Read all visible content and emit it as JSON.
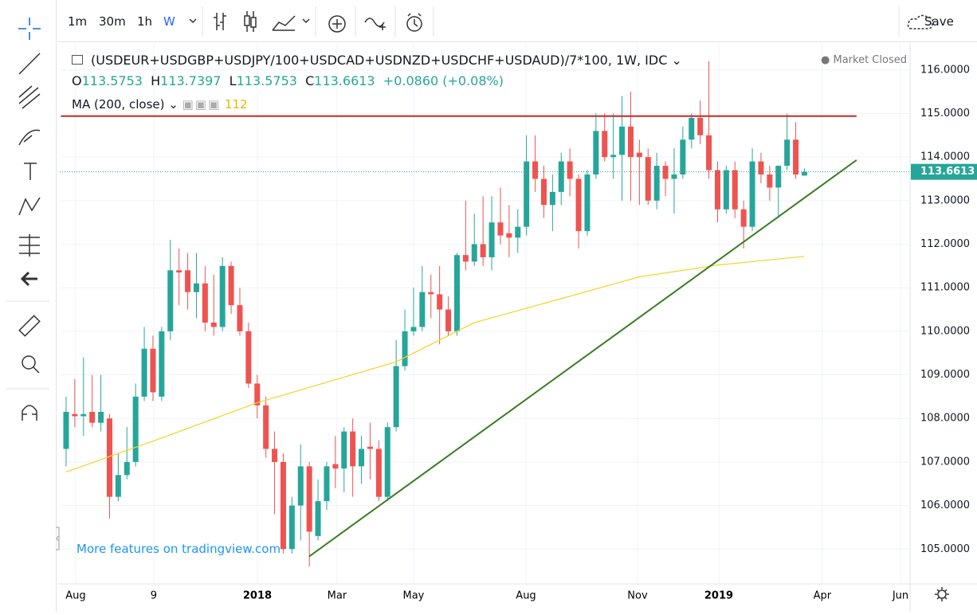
{
  "toolbar": {
    "intervals": [
      "1m",
      "30m",
      "1h",
      "W"
    ],
    "save": "Save"
  },
  "legend": {
    "symbol": "(USDEUR+USDGBP+USDJPY/100+USDCAD+USDNZD+USDCHF+USDAUD)/7*100, 1W, IDC",
    "status": "Market Closed",
    "open_label": "O",
    "high_label": "H",
    "low_label": "L",
    "close_label": "C",
    "change": "+0.0860",
    "change_pct": "(+0.08%)",
    "study": "MA (200, close)",
    "study_value": "112"
  },
  "watermark": "More features on tradingview.com",
  "chart_data": {
    "type": "candlestick",
    "up_color": "#26a69a",
    "down_color": "#ef5350",
    "x": [
      0,
      1,
      2,
      3,
      4,
      5,
      6,
      7,
      8,
      9,
      10,
      11,
      12,
      13,
      14,
      15,
      16,
      17,
      18,
      19,
      20,
      21,
      22,
      23,
      24,
      25,
      26,
      27,
      28,
      29,
      30,
      31,
      32,
      33,
      34,
      35,
      36,
      37,
      38,
      39,
      40,
      41,
      42,
      43,
      44,
      45,
      46,
      47,
      48,
      49,
      50,
      51,
      52,
      53,
      54,
      55,
      56,
      57,
      58,
      59,
      60,
      61,
      62,
      63,
      64,
      65,
      66,
      67,
      68,
      69,
      70,
      71,
      72,
      73,
      74,
      75,
      76,
      77,
      78,
      79,
      80,
      81,
      82,
      83,
      84,
      85
    ],
    "open": [
      107.3,
      108.1,
      108.05,
      108.15,
      107.9,
      108.0,
      106.2,
      106.7,
      107.0,
      108.5,
      109.6,
      108.5,
      110.0,
      111.4,
      111.4,
      110.9,
      111.1,
      110.2,
      110.1,
      111.5,
      110.6,
      110.0,
      108.8,
      108.3,
      107.3,
      107.0,
      105.0,
      106.0,
      106.9,
      105.3,
      106.1,
      106.95,
      106.85,
      107.7,
      106.9,
      107.35,
      107.3,
      106.2,
      107.8,
      109.2,
      110.0,
      110.1,
      110.9,
      110.85,
      110.5,
      110.0,
      111.75,
      111.6,
      112.0,
      111.7,
      112.5,
      112.25,
      112.15,
      112.4,
      113.9,
      113.5,
      112.9,
      113.2,
      113.9,
      113.5,
      112.3,
      113.6,
      114.6,
      114.0,
      114.05,
      114.7,
      114.1,
      114.0,
      113.0,
      113.8,
      113.5,
      113.6,
      114.4,
      114.9,
      114.5,
      113.7,
      112.8,
      113.7,
      112.8,
      112.4,
      113.9,
      113.6,
      113.3,
      113.8,
      114.4,
      113.5753
    ],
    "high": [
      108.5,
      108.9,
      109.4,
      109.0,
      109.0,
      108.1,
      107.2,
      107.8,
      108.8,
      110.1,
      109.9,
      110.1,
      112.1,
      111.9,
      111.8,
      111.8,
      111.5,
      111.3,
      111.7,
      111.6,
      111.0,
      110.2,
      109.0,
      108.5,
      107.7,
      107.2,
      106.2,
      107.4,
      107.0,
      106.6,
      107.0,
      107.6,
      107.8,
      108.0,
      107.6,
      107.9,
      107.5,
      107.9,
      109.8,
      110.5,
      111.0,
      111.5,
      111.3,
      111.5,
      110.8,
      111.8,
      113.0,
      112.7,
      113.1,
      113.1,
      113.3,
      112.9,
      112.8,
      114.5,
      114.5,
      113.8,
      113.6,
      114.1,
      114.2,
      113.6,
      113.7,
      115.0,
      115.0,
      115.0,
      115.4,
      115.5,
      114.4,
      114.2,
      114.1,
      113.9,
      114.2,
      114.7,
      115.0,
      115.3,
      116.2,
      113.9,
      113.8,
      113.9,
      113.0,
      114.2,
      114.1,
      113.8,
      113.8,
      115.0,
      114.8,
      113.7397
    ],
    "low": [
      106.9,
      107.8,
      107.6,
      107.8,
      107.7,
      105.7,
      106.1,
      106.6,
      106.9,
      108.4,
      108.4,
      108.4,
      109.8,
      110.6,
      110.5,
      110.3,
      110.0,
      109.9,
      110.0,
      110.4,
      109.9,
      108.7,
      108.0,
      107.1,
      105.8,
      104.9,
      104.9,
      105.2,
      104.6,
      105.2,
      105.9,
      106.4,
      106.3,
      106.2,
      106.5,
      106.6,
      106.1,
      106.1,
      107.7,
      109.1,
      109.9,
      110.0,
      110.3,
      109.7,
      109.9,
      109.9,
      111.4,
      111.5,
      111.5,
      111.4,
      112.0,
      111.7,
      111.8,
      112.2,
      113.2,
      112.6,
      112.3,
      112.9,
      113.1,
      111.9,
      112.2,
      113.5,
      113.9,
      113.5,
      113.0,
      113.0,
      112.9,
      112.9,
      112.8,
      113.1,
      112.7,
      113.5,
      114.2,
      114.3,
      113.5,
      112.5,
      112.7,
      112.6,
      111.9,
      112.3,
      113.4,
      113.0,
      112.6,
      113.7,
      113.5,
      113.5753
    ],
    "close": [
      108.15,
      108.05,
      108.1,
      107.9,
      108.15,
      106.2,
      106.7,
      107.0,
      108.5,
      109.6,
      108.6,
      110.0,
      111.4,
      111.35,
      110.9,
      111.1,
      110.2,
      110.1,
      111.5,
      110.6,
      110.0,
      108.8,
      108.3,
      107.3,
      107.0,
      105.0,
      106.0,
      106.9,
      105.4,
      106.1,
      106.9,
      106.85,
      107.7,
      106.9,
      107.3,
      107.3,
      106.2,
      107.8,
      109.2,
      110.0,
      110.1,
      110.9,
      110.85,
      110.5,
      110.0,
      111.75,
      111.6,
      112.0,
      111.7,
      112.5,
      112.2,
      112.15,
      112.4,
      113.9,
      113.5,
      112.9,
      113.2,
      113.9,
      113.5,
      112.3,
      113.6,
      114.6,
      114.0,
      114.05,
      114.7,
      114.0,
      114.0,
      113.0,
      113.8,
      113.5,
      113.6,
      114.4,
      114.9,
      114.5,
      113.7,
      112.8,
      113.7,
      112.8,
      112.4,
      113.9,
      113.6,
      113.3,
      113.8,
      114.4,
      113.6,
      113.6613
    ],
    "ma": {
      "color": "#f5d326",
      "x": [
        0,
        11,
        22,
        38,
        47,
        57,
        66,
        75,
        85
      ],
      "values": [
        106.77,
        107.55,
        108.36,
        109.3,
        110.2,
        110.75,
        111.25,
        111.52,
        111.72
      ]
    },
    "segments": [
      {
        "color": "#c62828",
        "x": [
          -0.6,
          91.0
        ],
        "values": [
          114.94,
          114.94
        ]
      },
      {
        "color": "#3a7d22",
        "x": [
          27.98,
          91.0
        ],
        "values": [
          104.83,
          113.93
        ]
      }
    ],
    "xlim": [
      -0.73,
      97.16
    ],
    "ylim": [
      104.2,
      116.6
    ],
    "xticks": [
      {
        "value": 1.1,
        "label": "Aug"
      },
      {
        "value": 10.09,
        "label": "9"
      },
      {
        "value": 22.02,
        "label": "2018",
        "bold": true
      },
      {
        "value": 31.19,
        "label": "Mar"
      },
      {
        "value": 40.0,
        "label": "May"
      },
      {
        "value": 52.94,
        "label": "Aug"
      },
      {
        "value": 65.78,
        "label": "Nov"
      },
      {
        "value": 75.14,
        "label": "2019",
        "bold": true
      },
      {
        "value": 87.06,
        "label": "Apr"
      },
      {
        "value": 96.06,
        "label": "Jun"
      }
    ],
    "yticks": [
      {
        "value": 105,
        "label": "105.0000"
      },
      {
        "value": 106,
        "label": "106.0000"
      },
      {
        "value": 107,
        "label": "107.0000"
      },
      {
        "value": 108,
        "label": "108.0000"
      },
      {
        "value": 109,
        "label": "109.0000"
      },
      {
        "value": 110,
        "label": "110.0000"
      },
      {
        "value": 111,
        "label": "111.0000"
      },
      {
        "value": 112,
        "label": "112.0000"
      },
      {
        "value": 113,
        "label": "113.0000"
      },
      {
        "value": 114,
        "label": "114.0000"
      },
      {
        "value": 115,
        "label": "115.0000"
      },
      {
        "value": 116,
        "label": "116.0000"
      }
    ],
    "grid": true
  }
}
